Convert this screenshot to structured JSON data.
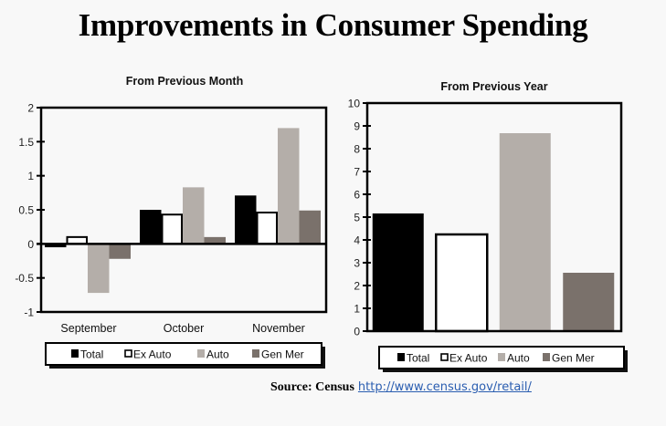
{
  "title": "Improvements in Consumer Spending",
  "source": {
    "label": "Source: Census",
    "link_text": "http://www.census.gov/retail/"
  },
  "legend": [
    {
      "name": "Total",
      "color": "#000000",
      "outline": false
    },
    {
      "name": "Ex Auto",
      "color": "#ffffff",
      "outline": true
    },
    {
      "name": "Auto",
      "color": "#b4aea9",
      "outline": false
    },
    {
      "name": "Gen Mer",
      "color": "#7a716b",
      "outline": false
    }
  ],
  "chart_data": [
    {
      "type": "bar",
      "title": "From Previous Month",
      "xlabel": "",
      "ylabel": "",
      "categories": [
        "September",
        "October",
        "November"
      ],
      "ylim": [
        -1,
        2
      ],
      "yticks": [
        "-1",
        "-0.5",
        "0",
        "0.5",
        "1",
        "1.5",
        "2"
      ],
      "ytick_values": [
        -1,
        -0.5,
        0,
        0.5,
        1,
        1.5,
        2
      ],
      "grid": false,
      "legend_position": "bottom",
      "series": [
        {
          "name": "Total",
          "values": [
            -0.05,
            0.5,
            0.71
          ]
        },
        {
          "name": "Ex Auto",
          "values": [
            0.1,
            0.43,
            0.46
          ]
        },
        {
          "name": "Auto",
          "values": [
            -0.72,
            0.83,
            1.7
          ]
        },
        {
          "name": "Gen Mer",
          "values": [
            -0.22,
            0.1,
            0.49
          ]
        }
      ]
    },
    {
      "type": "bar",
      "title": "From Previous Year",
      "xlabel": "",
      "ylabel": "",
      "categories": [
        "Total",
        "Ex Auto",
        "Auto",
        "Gen Mer"
      ],
      "ylim": [
        0,
        10
      ],
      "yticks": [
        "0",
        "1",
        "2",
        "3",
        "4",
        "5",
        "6",
        "7",
        "8",
        "9",
        "10"
      ],
      "ytick_values": [
        0,
        1,
        2,
        3,
        4,
        5,
        6,
        7,
        8,
        9,
        10
      ],
      "grid": false,
      "legend_position": "bottom",
      "values": [
        5.16,
        4.24,
        8.68,
        2.56
      ]
    }
  ]
}
